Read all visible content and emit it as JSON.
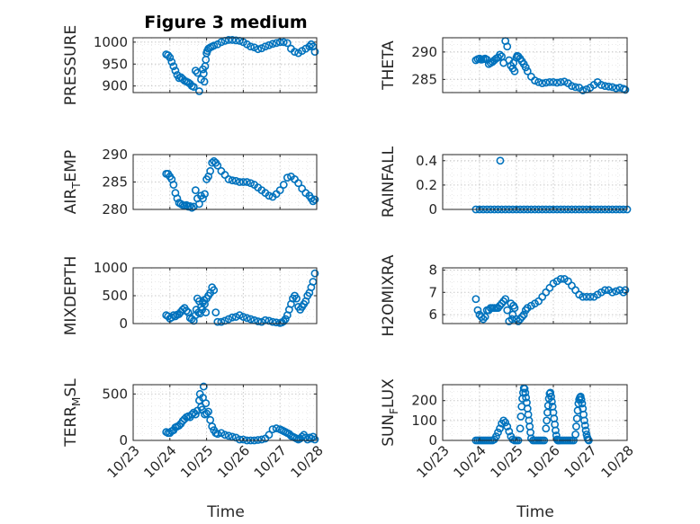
{
  "figure": {
    "title": "Figure 3 medium",
    "marker_color": "#0072BD"
  },
  "chart_data": [
    {
      "type": "scatter",
      "ylabel": "PRESSURE",
      "title": "Figure 3 medium",
      "xlim": [
        "10/23",
        "10/28"
      ],
      "ylim": [
        885,
        1010
      ],
      "yticks": [
        900,
        950,
        1000
      ],
      "x": [
        0.9,
        0.95,
        1.0,
        1.05,
        1.1,
        1.15,
        1.2,
        1.25,
        1.3,
        1.35,
        1.4,
        1.45,
        1.5,
        1.55,
        1.6,
        1.65,
        1.7,
        1.75,
        1.8,
        1.85,
        1.9,
        1.92,
        1.94,
        1.96,
        1.98,
        2.0,
        2.02,
        2.05,
        2.1,
        2.15,
        2.2,
        2.3,
        2.4,
        2.5,
        2.6,
        2.7,
        2.8,
        2.9,
        3.0,
        3.1,
        3.2,
        3.3,
        3.4,
        3.5,
        3.6,
        3.7,
        3.8,
        3.9,
        4.0,
        4.1,
        4.2,
        4.3,
        4.4,
        4.5,
        4.6,
        4.7,
        4.8,
        4.85,
        4.9,
        4.95
      ],
      "y": [
        972,
        970,
        965,
        955,
        945,
        935,
        925,
        918,
        920,
        916,
        912,
        910,
        908,
        905,
        900,
        898,
        935,
        930,
        888,
        915,
        938,
        928,
        910,
        945,
        960,
        975,
        980,
        985,
        988,
        990,
        992,
        995,
        1000,
        1003,
        1005,
        1005,
        1004,
        1003,
        1000,
        995,
        990,
        988,
        984,
        986,
        990,
        993,
        996,
        998,
        1000,
        1000,
        998,
        985,
        978,
        975,
        980,
        985,
        990,
        995,
        990,
        978
      ]
    },
    {
      "type": "scatter",
      "ylabel": "THETA",
      "xlim": [
        "10/23",
        "10/28"
      ],
      "ylim": [
        282.6,
        292.6
      ],
      "yticks": [
        285,
        290
      ],
      "x": [
        0.9,
        0.95,
        1.0,
        1.05,
        1.1,
        1.15,
        1.2,
        1.25,
        1.3,
        1.35,
        1.4,
        1.45,
        1.5,
        1.55,
        1.6,
        1.65,
        1.7,
        1.75,
        1.8,
        1.85,
        1.9,
        1.92,
        1.95,
        2.0,
        2.02,
        2.05,
        2.1,
        2.15,
        2.2,
        2.25,
        2.3,
        2.4,
        2.5,
        2.6,
        2.7,
        2.8,
        2.9,
        3.0,
        3.1,
        3.2,
        3.3,
        3.4,
        3.5,
        3.6,
        3.7,
        3.8,
        3.9,
        4.0,
        4.1,
        4.2,
        4.3,
        4.4,
        4.5,
        4.6,
        4.7,
        4.8,
        4.9,
        4.95
      ],
      "y": [
        288.5,
        288.7,
        288.8,
        288.6,
        288.7,
        288.8,
        288.6,
        287.8,
        288,
        288.2,
        288.5,
        288.8,
        289,
        289.5,
        289.2,
        288,
        292,
        291,
        288.5,
        287.5,
        287,
        288,
        286.5,
        289,
        289.3,
        289.2,
        288.8,
        288.3,
        287.8,
        287.2,
        286.5,
        285.5,
        284.8,
        284.5,
        284.3,
        284.4,
        284.5,
        284.5,
        284.4,
        284.5,
        284.6,
        284.3,
        283.8,
        283.6,
        283.5,
        283,
        283.2,
        283.5,
        284,
        284.5,
        284,
        283.8,
        283.7,
        283.6,
        283.4,
        283.5,
        283.3,
        283.1
      ]
    },
    {
      "type": "scatter",
      "ylabel": "AIR_TEMP",
      "xlim": [
        "10/23",
        "10/28"
      ],
      "ylim": [
        280,
        290
      ],
      "yticks": [
        280,
        285,
        290
      ],
      "x": [
        0.9,
        0.95,
        1.0,
        1.05,
        1.1,
        1.15,
        1.2,
        1.25,
        1.3,
        1.35,
        1.4,
        1.45,
        1.5,
        1.55,
        1.6,
        1.65,
        1.7,
        1.75,
        1.8,
        1.85,
        1.9,
        1.95,
        2.0,
        2.05,
        2.1,
        2.15,
        2.2,
        2.25,
        2.3,
        2.4,
        2.5,
        2.6,
        2.7,
        2.8,
        2.9,
        3.0,
        3.1,
        3.2,
        3.3,
        3.4,
        3.5,
        3.6,
        3.7,
        3.8,
        3.9,
        4.0,
        4.1,
        4.2,
        4.3,
        4.4,
        4.5,
        4.6,
        4.7,
        4.8,
        4.85,
        4.9,
        4.95
      ],
      "y": [
        286.5,
        286.5,
        286,
        285.5,
        284.5,
        283,
        282,
        281.2,
        281,
        280.8,
        280.7,
        280.8,
        280.5,
        280.6,
        280.3,
        280.5,
        283.5,
        282,
        281,
        282.5,
        282,
        282.8,
        285.5,
        286,
        287,
        288.5,
        288.8,
        288.5,
        288,
        287,
        286.3,
        285.5,
        285.3,
        285.2,
        285,
        285,
        285,
        284.8,
        284.5,
        284,
        283.5,
        283,
        282.5,
        282.3,
        282.8,
        283.5,
        284.5,
        285.8,
        286,
        285.5,
        284.8,
        283.8,
        283,
        282.5,
        282,
        281.5,
        281.8
      ]
    },
    {
      "type": "scatter",
      "ylabel": "RAINFALL",
      "xlim": [
        "10/23",
        "10/28"
      ],
      "ylim": [
        0,
        0.45
      ],
      "yticks": [
        0,
        0.2,
        0.4
      ],
      "x": [
        0.9,
        1.0,
        1.1,
        1.2,
        1.3,
        1.4,
        1.5,
        1.6,
        1.7,
        1.8,
        1.9,
        2.0,
        2.1,
        2.2,
        2.3,
        2.4,
        2.5,
        2.6,
        2.7,
        2.8,
        2.9,
        3.0,
        3.1,
        3.2,
        3.3,
        3.4,
        3.5,
        3.6,
        3.7,
        3.8,
        3.9,
        4.0,
        4.1,
        4.2,
        4.3,
        4.4,
        4.5,
        4.6,
        4.7,
        4.8,
        4.9,
        5.0,
        1.56
      ],
      "y": [
        0,
        0,
        0,
        0,
        0,
        0,
        0,
        0,
        0,
        0,
        0,
        0,
        0,
        0,
        0,
        0,
        0,
        0,
        0,
        0,
        0,
        0,
        0,
        0,
        0,
        0,
        0,
        0,
        0,
        0,
        0,
        0,
        0,
        0,
        0,
        0,
        0,
        0,
        0,
        0,
        0,
        0,
        0.4
      ]
    },
    {
      "type": "scatter",
      "ylabel": "MIXDEPTH",
      "xlim": [
        "10/23",
        "10/28"
      ],
      "ylim": [
        0,
        1000
      ],
      "yticks": [
        0,
        500,
        1000
      ],
      "x": [
        0.9,
        0.95,
        1.0,
        1.05,
        1.1,
        1.15,
        1.2,
        1.25,
        1.3,
        1.35,
        1.4,
        1.45,
        1.5,
        1.55,
        1.6,
        1.65,
        1.7,
        1.72,
        1.75,
        1.78,
        1.8,
        1.82,
        1.85,
        1.88,
        1.9,
        1.93,
        1.95,
        1.98,
        2.0,
        2.05,
        2.1,
        2.15,
        2.2,
        2.25,
        2.3,
        2.4,
        2.5,
        2.6,
        2.7,
        2.8,
        2.9,
        3.0,
        3.1,
        3.2,
        3.3,
        3.4,
        3.5,
        3.6,
        3.7,
        3.8,
        3.9,
        4.0,
        4.05,
        4.1,
        4.15,
        4.2,
        4.25,
        4.3,
        4.35,
        4.4,
        4.45,
        4.5,
        4.55,
        4.6,
        4.65,
        4.7,
        4.75,
        4.8,
        4.85,
        4.9,
        4.95
      ],
      "y": [
        150,
        130,
        90,
        110,
        150,
        130,
        160,
        170,
        210,
        250,
        280,
        230,
        200,
        100,
        80,
        50,
        150,
        250,
        450,
        200,
        400,
        180,
        300,
        250,
        380,
        420,
        350,
        200,
        450,
        500,
        550,
        650,
        600,
        200,
        30,
        30,
        50,
        80,
        110,
        120,
        150,
        120,
        100,
        80,
        60,
        40,
        30,
        60,
        50,
        30,
        20,
        10,
        20,
        40,
        80,
        150,
        250,
        350,
        450,
        500,
        450,
        300,
        250,
        300,
        350,
        400,
        500,
        550,
        650,
        750,
        900
      ]
    },
    {
      "type": "scatter",
      "ylabel": "H2OMIXRA",
      "xlim": [
        "10/23",
        "10/28"
      ],
      "ylim": [
        5.6,
        8.1
      ],
      "yticks": [
        6,
        7,
        8
      ],
      "x": [
        0.9,
        0.95,
        1.0,
        1.05,
        1.1,
        1.15,
        1.2,
        1.25,
        1.3,
        1.35,
        1.4,
        1.45,
        1.5,
        1.55,
        1.6,
        1.65,
        1.7,
        1.75,
        1.8,
        1.85,
        1.88,
        1.9,
        1.92,
        1.95,
        2.0,
        2.05,
        2.1,
        2.15,
        2.2,
        2.25,
        2.3,
        2.4,
        2.5,
        2.6,
        2.7,
        2.8,
        2.9,
        3.0,
        3.1,
        3.2,
        3.3,
        3.4,
        3.5,
        3.6,
        3.7,
        3.8,
        3.9,
        4.0,
        4.1,
        4.2,
        4.3,
        4.4,
        4.5,
        4.6,
        4.7,
        4.8,
        4.9,
        4.95
      ],
      "y": [
        6.7,
        6.2,
        6,
        5.9,
        5.8,
        5.9,
        6.2,
        6.2,
        6.3,
        6.3,
        6.3,
        6.3,
        6.3,
        6.4,
        6.5,
        6.6,
        6.7,
        6.2,
        5.7,
        6.5,
        5.8,
        6,
        6.4,
        6.3,
        5.8,
        5.7,
        5.8,
        5.9,
        6,
        6.2,
        6.3,
        6.4,
        6.5,
        6.6,
        6.8,
        7,
        7.2,
        7.4,
        7.5,
        7.6,
        7.6,
        7.5,
        7.3,
        7.1,
        6.9,
        6.8,
        6.8,
        6.8,
        6.8,
        6.9,
        7,
        7.1,
        7.1,
        7,
        7.05,
        7.1,
        7.0,
        7.1
      ]
    },
    {
      "type": "scatter",
      "ylabel": "TERR_MSL",
      "xlim": [
        "10/23",
        "10/28"
      ],
      "ylim": [
        0,
        600
      ],
      "yticks": [
        0,
        500
      ],
      "x": [
        0.9,
        0.95,
        1.0,
        1.05,
        1.1,
        1.15,
        1.2,
        1.25,
        1.3,
        1.35,
        1.4,
        1.45,
        1.5,
        1.55,
        1.6,
        1.65,
        1.7,
        1.75,
        1.8,
        1.82,
        1.85,
        1.88,
        1.9,
        1.92,
        1.95,
        1.98,
        2.0,
        2.05,
        2.1,
        2.15,
        2.2,
        2.25,
        2.3,
        2.4,
        2.5,
        2.6,
        2.7,
        2.8,
        2.9,
        3.0,
        3.1,
        3.2,
        3.3,
        3.4,
        3.5,
        3.6,
        3.7,
        3.8,
        3.9,
        4.0,
        4.05,
        4.1,
        4.15,
        4.2,
        4.25,
        4.3,
        4.35,
        4.4,
        4.45,
        4.5,
        4.55,
        4.6,
        4.65,
        4.7,
        4.75,
        4.8,
        4.85,
        4.9,
        4.95
      ],
      "y": [
        90,
        80,
        80,
        100,
        110,
        140,
        150,
        160,
        180,
        210,
        230,
        250,
        260,
        250,
        280,
        300,
        280,
        320,
        430,
        500,
        360,
        330,
        460,
        580,
        280,
        400,
        290,
        310,
        220,
        150,
        110,
        80,
        70,
        80,
        60,
        50,
        40,
        30,
        10,
        10,
        0,
        0,
        0,
        5,
        10,
        20,
        60,
        120,
        130,
        120,
        110,
        100,
        90,
        80,
        70,
        50,
        40,
        30,
        20,
        10,
        20,
        40,
        60,
        30,
        10,
        30,
        20,
        40,
        10
      ]
    },
    {
      "type": "scatter",
      "ylabel": "SUN_FLUX",
      "xlim": [
        "10/23",
        "10/28"
      ],
      "ylim": [
        0,
        280
      ],
      "yticks": [
        0,
        100,
        200
      ],
      "x": [
        0.9,
        0.95,
        1.0,
        1.05,
        1.1,
        1.15,
        1.2,
        1.25,
        1.3,
        1.35,
        1.4,
        1.45,
        1.5,
        1.55,
        1.6,
        1.65,
        1.7,
        1.75,
        1.8,
        1.85,
        1.9,
        1.95,
        2.0,
        2.05,
        2.1,
        2.12,
        2.14,
        2.16,
        2.18,
        2.2,
        2.22,
        2.24,
        2.26,
        2.28,
        2.3,
        2.32,
        2.34,
        2.36,
        2.38,
        2.4,
        2.45,
        2.5,
        2.55,
        2.6,
        2.65,
        2.7,
        2.75,
        2.8,
        2.82,
        2.84,
        2.86,
        2.88,
        2.9,
        2.92,
        2.94,
        2.96,
        2.98,
        3.0,
        3.02,
        3.04,
        3.06,
        3.08,
        3.1,
        3.12,
        3.14,
        3.16,
        3.2,
        3.25,
        3.3,
        3.35,
        3.4,
        3.45,
        3.5,
        3.55,
        3.6,
        3.62,
        3.64,
        3.66,
        3.68,
        3.7,
        3.72,
        3.74,
        3.76,
        3.78,
        3.8,
        3.82,
        3.84,
        3.86,
        3.88,
        3.9,
        3.92,
        3.94,
        3.96
      ],
      "y": [
        0,
        0,
        0,
        0,
        0,
        0,
        0,
        0,
        0,
        0,
        5,
        20,
        40,
        60,
        85,
        100,
        90,
        70,
        45,
        20,
        5,
        0,
        0,
        0,
        60,
        120,
        170,
        210,
        240,
        262,
        260,
        240,
        215,
        190,
        160,
        130,
        100,
        70,
        40,
        10,
        0,
        0,
        0,
        0,
        0,
        0,
        0,
        60,
        100,
        140,
        175,
        210,
        235,
        240,
        220,
        195,
        170,
        140,
        110,
        80,
        50,
        25,
        5,
        0,
        0,
        0,
        0,
        0,
        0,
        0,
        0,
        0,
        0,
        0,
        30,
        70,
        110,
        150,
        185,
        205,
        215,
        220,
        205,
        185,
        160,
        130,
        100,
        75,
        50,
        30,
        15,
        5,
        0
      ]
    }
  ],
  "axes": {
    "xtick_labels": [
      "10/23",
      "10/24",
      "10/25",
      "10/26",
      "10/27",
      "10/28"
    ],
    "xlabel_left": "Time",
    "xlabel_right": "Time"
  }
}
